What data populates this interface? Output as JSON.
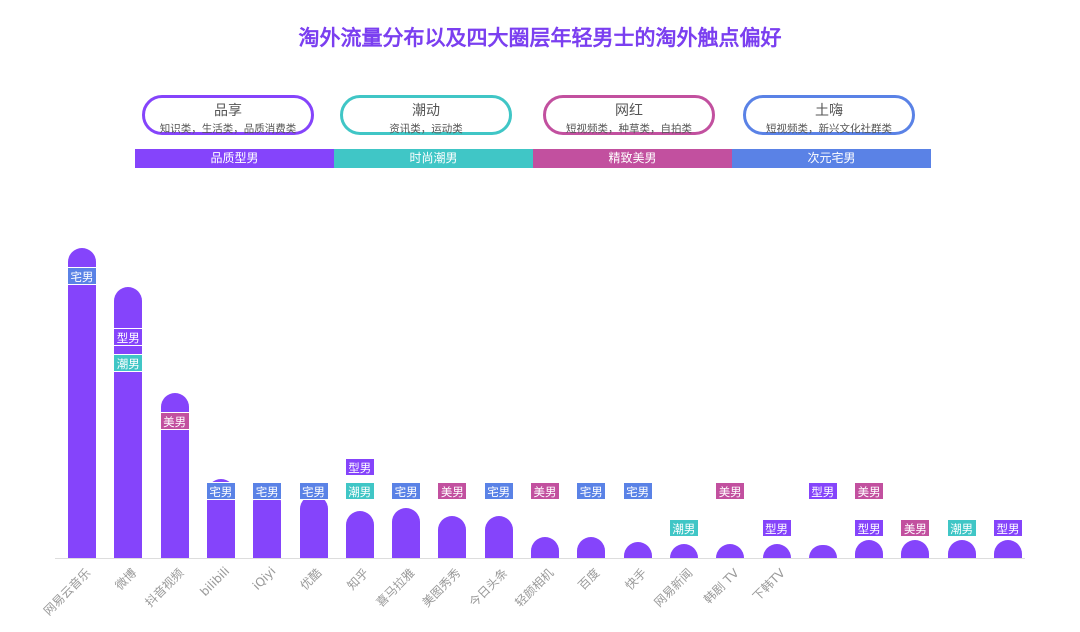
{
  "title": "淘外流量分布以及四大圈层年轻男士的淘外触点偏好",
  "pills": [
    {
      "title": "品享",
      "sub": "知识类，生活类，品质消费类",
      "color": "#8544fb"
    },
    {
      "title": "潮动",
      "sub": "资讯类，运动类",
      "color": "#40c6c6"
    },
    {
      "title": "网红",
      "sub": "短视频类，种草类，自拍类",
      "color": "#c2509f"
    },
    {
      "title": "土嗨",
      "sub": "短视频类，新兴文化社群类",
      "color": "#5a82e6"
    }
  ],
  "bands": [
    {
      "label": "品质型男",
      "color": "#8544fb"
    },
    {
      "label": "时尚潮男",
      "color": "#40c6c6"
    },
    {
      "label": "精致美男",
      "color": "#c2509f"
    },
    {
      "label": "次元宅男",
      "color": "#5a82e6"
    }
  ],
  "tag_colors": {
    "型男": "#8544fb",
    "潮男": "#40c6c6",
    "美男": "#c2509f",
    "宅男": "#5a82e6"
  },
  "chart_data": {
    "type": "bar",
    "title": "淘外流量分布以及四大圈层年轻男士的淘外触点偏好",
    "categories": [
      "网易云音乐",
      "微博",
      "抖音视频",
      "bilibili",
      "iQiyi",
      "优酷",
      "知乎",
      "喜马拉雅",
      "美图秀秀",
      "今日头条",
      "轻颜相机",
      "百度",
      "快手",
      "网易新闻",
      "韩剧 TV",
      "下韩TV",
      "",
      "",
      "",
      "",
      ""
    ],
    "values": [
      310,
      271,
      165,
      79,
      70,
      63,
      47,
      50,
      42,
      42,
      21,
      21,
      16,
      14,
      14,
      14,
      13,
      18,
      18,
      18,
      18
    ],
    "tags": [
      [
        "宅男"
      ],
      [
        "型男",
        "潮男"
      ],
      [
        "美男"
      ],
      [
        "宅男"
      ],
      [
        "宅男"
      ],
      [
        "宅男"
      ],
      [
        "型男",
        "潮男"
      ],
      [
        "宅男"
      ],
      [
        "美男"
      ],
      [
        "宅男"
      ],
      [
        "美男"
      ],
      [
        "宅男"
      ],
      [
        "宅男"
      ],
      [
        "潮男"
      ],
      [
        "美男"
      ],
      [
        "型男"
      ],
      [
        "型男"
      ],
      [
        "美男",
        "型男"
      ],
      [
        "美男"
      ],
      [
        "潮男"
      ],
      [
        "型男"
      ]
    ],
    "bar_color": "#8544fb",
    "grid": false
  }
}
